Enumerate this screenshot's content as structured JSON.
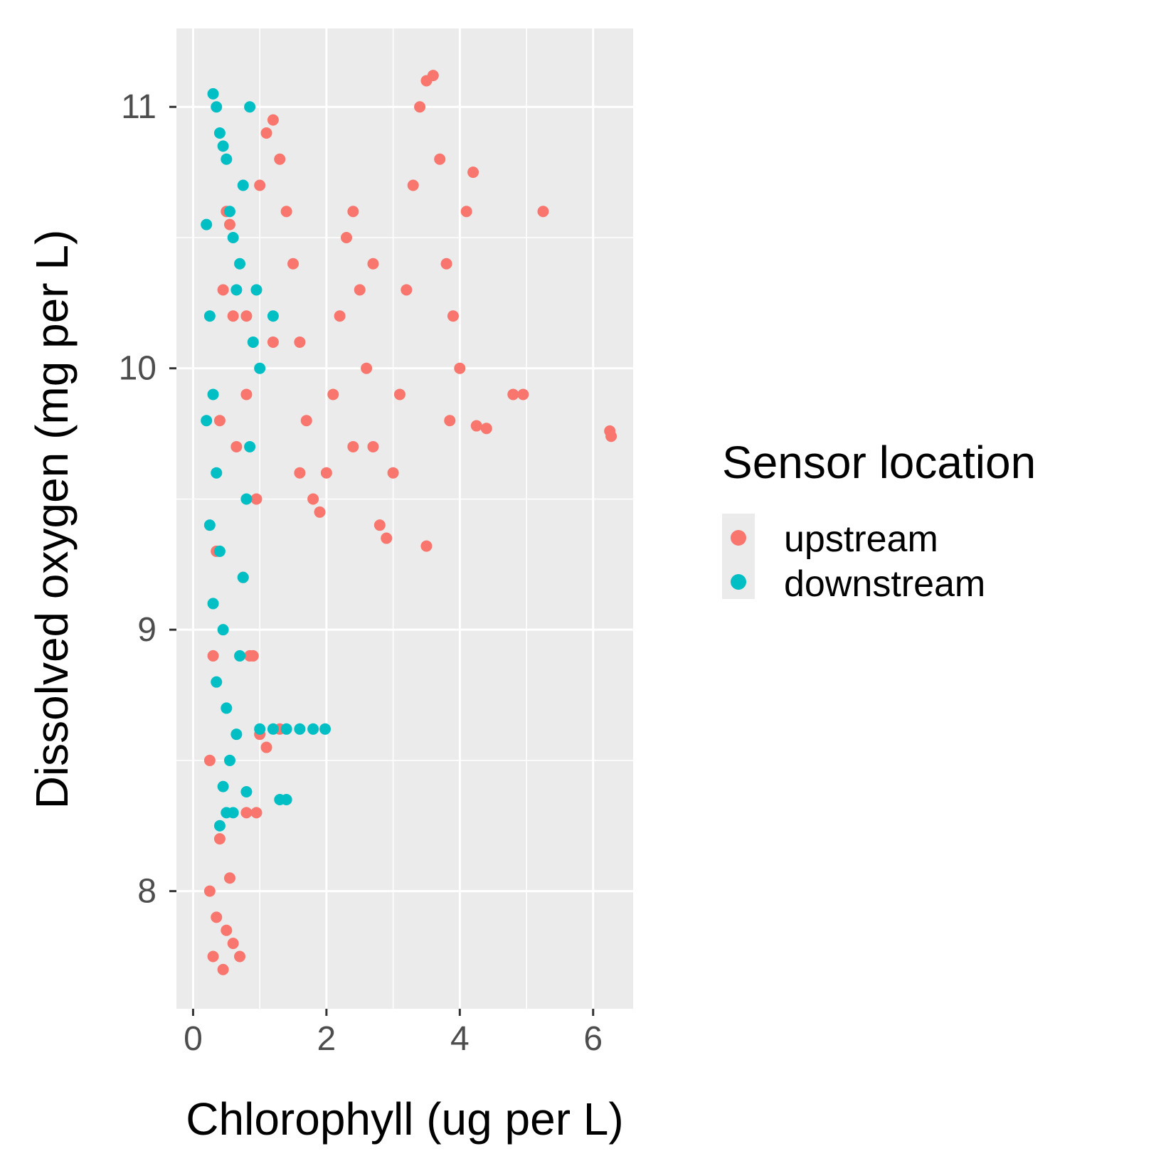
{
  "chart_data": {
    "type": "scatter",
    "title": "",
    "xlabel": "Chlorophyll (ug per L)",
    "ylabel": "Dissolved oxygen (mg per L)",
    "xlim": [
      -0.25,
      6.6
    ],
    "ylim": [
      7.55,
      11.3
    ],
    "x_ticks": [
      0,
      2,
      4,
      6
    ],
    "y_ticks": [
      8,
      9,
      10,
      11
    ],
    "x_tick_labels": [
      "0",
      "2",
      "4",
      "6"
    ],
    "y_tick_labels": [
      "8",
      "9",
      "10",
      "11"
    ],
    "grid": true,
    "panel_background": "#ebebeb",
    "legend": {
      "title": "Sensor location",
      "position": "right"
    },
    "series": [
      {
        "name": "upstream",
        "color": "#f8766d",
        "points": [
          [
            0.25,
            8.0
          ],
          [
            0.3,
            7.75
          ],
          [
            0.35,
            7.9
          ],
          [
            0.4,
            8.2
          ],
          [
            0.45,
            7.7
          ],
          [
            0.5,
            7.85
          ],
          [
            0.55,
            8.05
          ],
          [
            0.6,
            7.8
          ],
          [
            0.7,
            7.75
          ],
          [
            0.8,
            8.3
          ],
          [
            0.25,
            8.5
          ],
          [
            0.3,
            8.9
          ],
          [
            0.35,
            9.3
          ],
          [
            0.4,
            9.8
          ],
          [
            0.45,
            10.3
          ],
          [
            0.5,
            10.6
          ],
          [
            0.55,
            10.55
          ],
          [
            0.6,
            10.2
          ],
          [
            0.65,
            9.7
          ],
          [
            0.75,
            9.2
          ],
          [
            0.85,
            8.9
          ],
          [
            0.95,
            9.5
          ],
          [
            0.8,
            10.2
          ],
          [
            1.0,
            10.7
          ],
          [
            1.1,
            10.9
          ],
          [
            1.2,
            10.95
          ],
          [
            1.3,
            10.8
          ],
          [
            1.4,
            10.6
          ],
          [
            1.5,
            10.4
          ],
          [
            1.6,
            10.1
          ],
          [
            1.7,
            9.8
          ],
          [
            1.8,
            9.5
          ],
          [
            1.9,
            9.45
          ],
          [
            2.0,
            9.6
          ],
          [
            2.1,
            9.9
          ],
          [
            2.2,
            10.2
          ],
          [
            2.3,
            10.5
          ],
          [
            2.4,
            10.6
          ],
          [
            2.5,
            10.3
          ],
          [
            2.6,
            10.0
          ],
          [
            2.7,
            9.7
          ],
          [
            2.8,
            9.4
          ],
          [
            2.9,
            9.35
          ],
          [
            3.0,
            9.6
          ],
          [
            3.1,
            9.9
          ],
          [
            3.2,
            10.3
          ],
          [
            3.3,
            10.7
          ],
          [
            3.4,
            11.0
          ],
          [
            3.5,
            11.1
          ],
          [
            3.6,
            11.12
          ],
          [
            3.7,
            10.8
          ],
          [
            3.8,
            10.4
          ],
          [
            3.9,
            10.2
          ],
          [
            4.0,
            10.0
          ],
          [
            4.1,
            10.6
          ],
          [
            4.2,
            10.75
          ],
          [
            4.4,
            9.77
          ],
          [
            4.8,
            9.9
          ],
          [
            4.95,
            9.9
          ],
          [
            5.25,
            10.6
          ],
          [
            6.25,
            9.76
          ],
          [
            6.27,
            9.74
          ],
          [
            3.85,
            9.8
          ],
          [
            4.25,
            9.78
          ],
          [
            3.5,
            9.32
          ],
          [
            2.4,
            9.7
          ],
          [
            2.7,
            10.4
          ],
          [
            1.0,
            8.6
          ],
          [
            1.3,
            8.62
          ],
          [
            1.1,
            8.55
          ],
          [
            0.95,
            8.3
          ],
          [
            0.9,
            8.9
          ],
          [
            0.8,
            9.9
          ],
          [
            1.2,
            10.1
          ],
          [
            1.6,
            9.6
          ]
        ]
      },
      {
        "name": "downstream",
        "color": "#00bfc4",
        "points": [
          [
            0.3,
            11.05
          ],
          [
            0.35,
            11.0
          ],
          [
            0.4,
            10.9
          ],
          [
            0.45,
            10.85
          ],
          [
            0.5,
            10.8
          ],
          [
            0.55,
            10.6
          ],
          [
            0.6,
            10.5
          ],
          [
            0.65,
            10.3
          ],
          [
            0.7,
            10.4
          ],
          [
            0.75,
            10.7
          ],
          [
            0.2,
            10.55
          ],
          [
            0.25,
            10.2
          ],
          [
            0.3,
            9.9
          ],
          [
            0.35,
            9.6
          ],
          [
            0.4,
            9.3
          ],
          [
            0.45,
            9.0
          ],
          [
            0.5,
            8.7
          ],
          [
            0.55,
            8.5
          ],
          [
            0.6,
            8.3
          ],
          [
            0.65,
            8.6
          ],
          [
            0.7,
            8.9
          ],
          [
            0.75,
            9.2
          ],
          [
            0.8,
            9.5
          ],
          [
            0.85,
            9.7
          ],
          [
            0.9,
            10.1
          ],
          [
            0.95,
            10.3
          ],
          [
            1.0,
            10.0
          ],
          [
            0.4,
            8.25
          ],
          [
            0.5,
            8.3
          ],
          [
            0.8,
            8.38
          ],
          [
            1.2,
            10.2
          ],
          [
            1.0,
            8.62
          ],
          [
            1.2,
            8.62
          ],
          [
            1.4,
            8.62
          ],
          [
            1.6,
            8.62
          ],
          [
            1.8,
            8.62
          ],
          [
            1.98,
            8.62
          ],
          [
            1.3,
            8.35
          ],
          [
            1.4,
            8.35
          ],
          [
            0.85,
            11.0
          ],
          [
            0.2,
            9.8
          ],
          [
            0.25,
            9.4
          ],
          [
            0.3,
            9.1
          ],
          [
            0.35,
            8.8
          ],
          [
            0.45,
            8.4
          ]
        ]
      }
    ]
  }
}
